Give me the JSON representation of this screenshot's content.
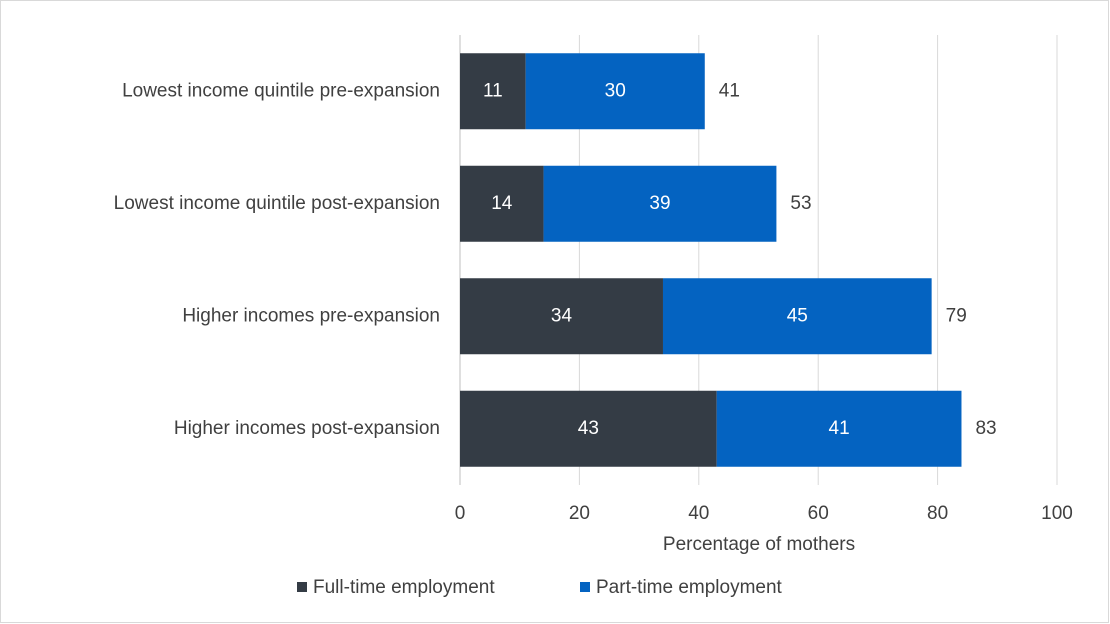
{
  "chart_data": {
    "type": "stacked-barh",
    "categories": [
      "Lowest income quintile pre-expansion",
      "Lowest income quintile post-expansion",
      "Higher incomes pre-expansion",
      "Higher incomes post-expansion"
    ],
    "series": [
      {
        "name": "Full-time employment",
        "color": "#343c45",
        "values": [
          11,
          14,
          34,
          43
        ]
      },
      {
        "name": "Part-time employment",
        "color": "#0463c1",
        "values": [
          30,
          39,
          45,
          41
        ]
      }
    ],
    "totals": [
      41,
      53,
      79,
      83
    ],
    "xlabel": "Percentage of mothers",
    "xlim": [
      0,
      100
    ],
    "xticks": [
      0,
      20,
      40,
      60,
      80,
      100
    ],
    "grid": true,
    "legend": "bottom"
  }
}
